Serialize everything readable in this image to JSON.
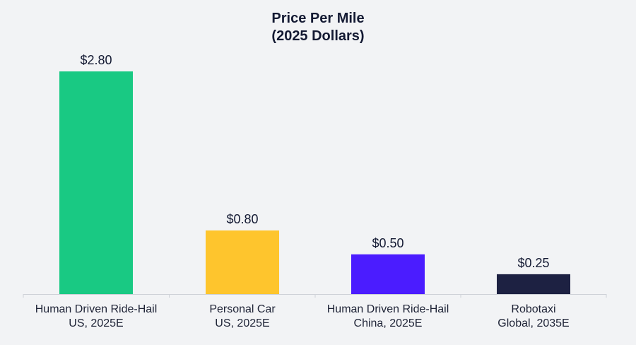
{
  "chart_data": {
    "type": "bar",
    "title_lines": [
      "Price Per Mile",
      "(2025 Dollars)"
    ],
    "categories": [
      [
        "Human Driven Ride-Hail",
        "US, 2025E"
      ],
      [
        "Personal Car",
        "US, 2025E"
      ],
      [
        "Human Driven Ride-Hail",
        "China, 2025E"
      ],
      [
        "Robotaxi",
        "Global, 2035E"
      ]
    ],
    "values": [
      2.8,
      0.8,
      0.5,
      0.25
    ],
    "value_labels": [
      "$2.80",
      "$0.80",
      "$0.50",
      "$0.25"
    ],
    "colors": [
      "#19c983",
      "#fec52d",
      "#4b1cff",
      "#1d2142"
    ],
    "xlabel": "",
    "ylabel": "",
    "ylim": [
      0,
      2.8
    ],
    "grid": false,
    "legend": false
  }
}
